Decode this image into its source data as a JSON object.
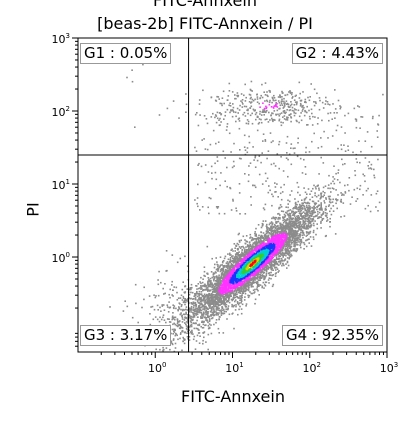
{
  "chart_data": {
    "type": "scatter",
    "cut_title": "FITC-Annxein",
    "title": "[beas-2b] FITC-Annxein / PI",
    "xlabel": "FITC-Annxein",
    "ylabel": "PI",
    "xscale": "log",
    "yscale": "log",
    "xlim": [
      0.1,
      1000
    ],
    "ylim": [
      0.05,
      1000
    ],
    "x_ticks": [
      {
        "value": 1,
        "base": "10",
        "exp": "0"
      },
      {
        "value": 10,
        "base": "10",
        "exp": "1"
      },
      {
        "value": 100,
        "base": "10",
        "exp": "2"
      },
      {
        "value": 1000,
        "base": "10",
        "exp": "3"
      }
    ],
    "y_ticks": [
      {
        "value": 1,
        "base": "10",
        "exp": "0"
      },
      {
        "value": 10,
        "base": "10",
        "exp": "1"
      },
      {
        "value": 100,
        "base": "10",
        "exp": "2"
      },
      {
        "value": 1000,
        "base": "10",
        "exp": "3"
      }
    ],
    "gate_x": 2.7,
    "gate_y": 25,
    "quadrants": [
      {
        "id": "G1",
        "label": "G1 : 0.05%",
        "position": "top-left"
      },
      {
        "id": "G2",
        "label": "G2 : 4.43%",
        "position": "top-right"
      },
      {
        "id": "G3",
        "label": "G3 : 3.17%",
        "position": "bottom-left"
      },
      {
        "id": "G4",
        "label": "G4 : 92.35%",
        "position": "bottom-right"
      }
    ],
    "density_colors": [
      "#8c8c8c",
      "#ff33ff",
      "#1a33ff",
      "#00d0d0",
      "#33cc33",
      "#d8d800",
      "#ff0000"
    ]
  }
}
